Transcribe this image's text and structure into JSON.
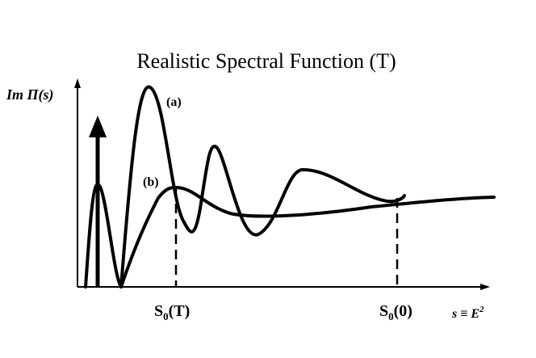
{
  "title": "Realistic Spectral Function (T)",
  "y_axis_label": "Im Π(s)",
  "x_axis_label": "s ≡ E",
  "x_axis_label_superscript": "2",
  "curve_a_label": "(a)",
  "curve_b_label": "(b)",
  "marker_s0_T": {
    "base": "S",
    "sub": "0",
    "arg": "(T)"
  },
  "marker_s0_0": {
    "base": "S",
    "sub": "0",
    "arg": "(0)"
  },
  "colors": {
    "ink": "#000000",
    "background": "#ffffff"
  }
}
